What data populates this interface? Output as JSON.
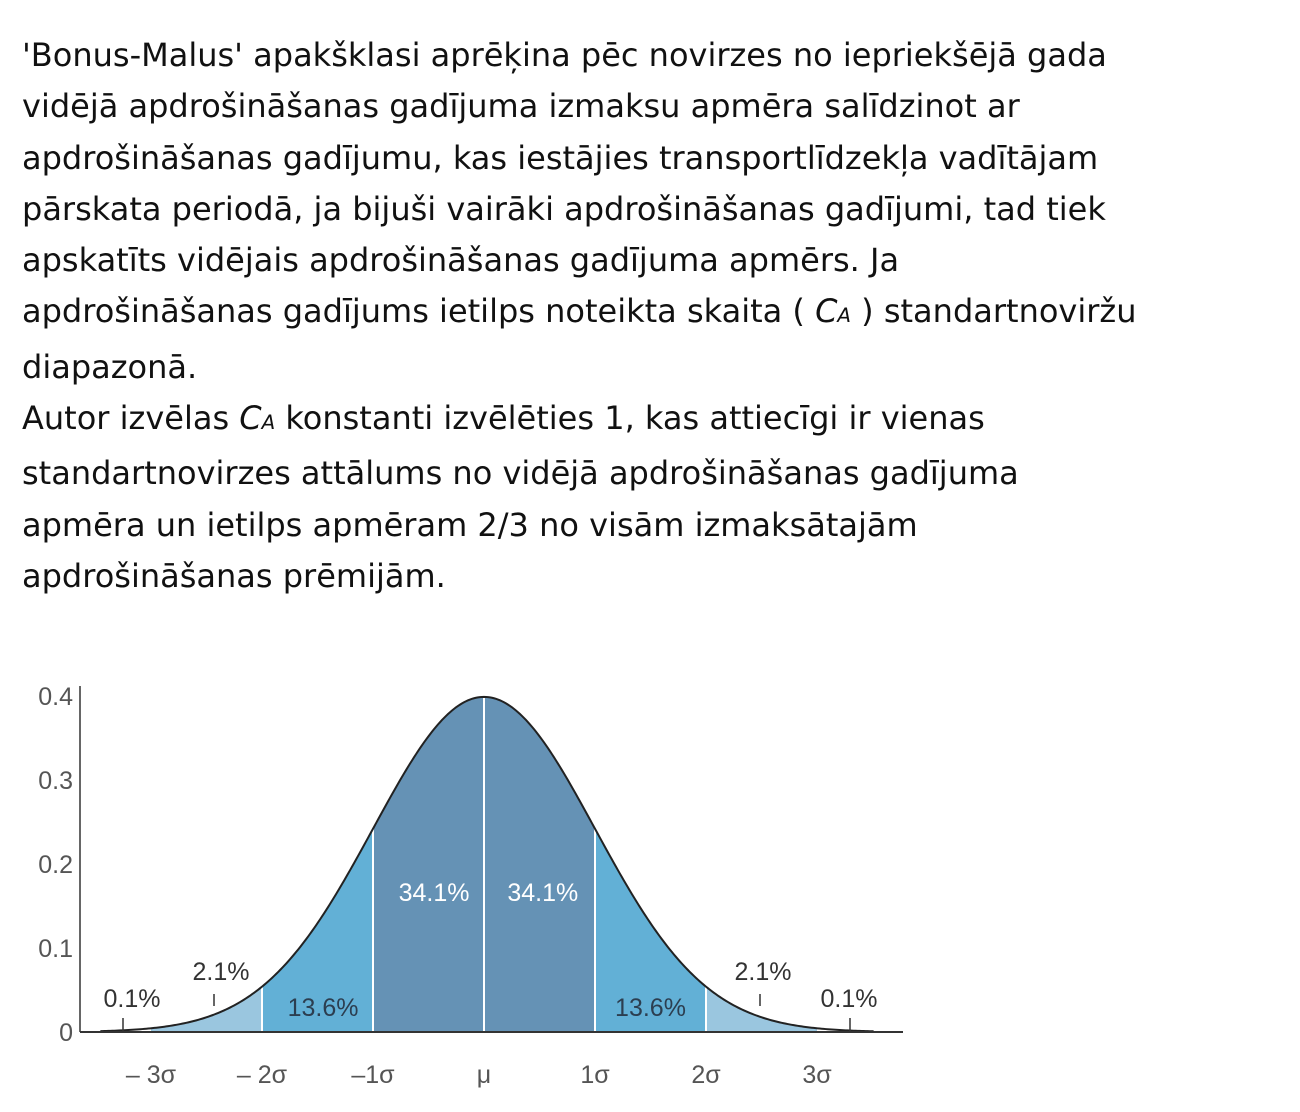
{
  "paragraph1": [
    "'Bonus-Malus' apakšklasi aprēķina pēc novirzes no iepriekšējā gada",
    "vidējā apdrošināšanas gadījuma izmaksu apmēra salīdzinot ar",
    "apdrošināšanas gadījumu, kas iestājies transportlīdzekļa vadītājam",
    "pārskata periodā, ja bijuši vairāki apdrošināšanas gadījumi, tad tiek",
    "apskatīts vidējais apdrošināšanas gadījuma apmērs. Ja"
  ],
  "line6_before": "apdrošināšanas gadījums ietilps noteikta skaita ( ",
  "line6_after": " ) standartnoviržu",
  "line7": "diapazonā.",
  "ca_letter": "C",
  "ca_sub": "A",
  "paragraph2_start": "Autor izvēlas ",
  "paragraph2_after": " konstanti izvēlēties 1, kas attiecīgi ir vienas",
  "paragraph2_rest": [
    "standartnovirzes attālums no vidējā apdrošināšanas gadījuma",
    "apmēra un ietilps apmēram 2/3 no visām izmaksātajām",
    "apdrošināšanas prēmijām."
  ],
  "chart_data": {
    "type": "area",
    "curve": "standard normal density",
    "ylim": [
      0,
      0.4
    ],
    "yticks": [
      "0",
      "0.1",
      "0.2",
      "0.3",
      "0.4"
    ],
    "xticks": [
      "– 3σ",
      "– 2σ",
      "–1σ",
      "μ",
      "1σ",
      "2σ",
      "3σ"
    ],
    "regions": [
      {
        "from": -3,
        "to": -2,
        "label": "2.1%",
        "color": "#9ac6df"
      },
      {
        "from": -2,
        "to": -1,
        "label": "13.6%",
        "color": "#62b0d6"
      },
      {
        "from": -1,
        "to": 0,
        "label": "34.1%",
        "color": "#6592b5"
      },
      {
        "from": 0,
        "to": 1,
        "label": "34.1%",
        "color": "#6592b5"
      },
      {
        "from": 1,
        "to": 2,
        "label": "13.6%",
        "color": "#62b0d6"
      },
      {
        "from": 2,
        "to": 3,
        "label": "2.1%",
        "color": "#9ac6df"
      }
    ],
    "tails": [
      {
        "side": "left",
        "label": "0.1%"
      },
      {
        "side": "right",
        "label": "0.1%"
      }
    ],
    "curve_color": "#222222"
  }
}
